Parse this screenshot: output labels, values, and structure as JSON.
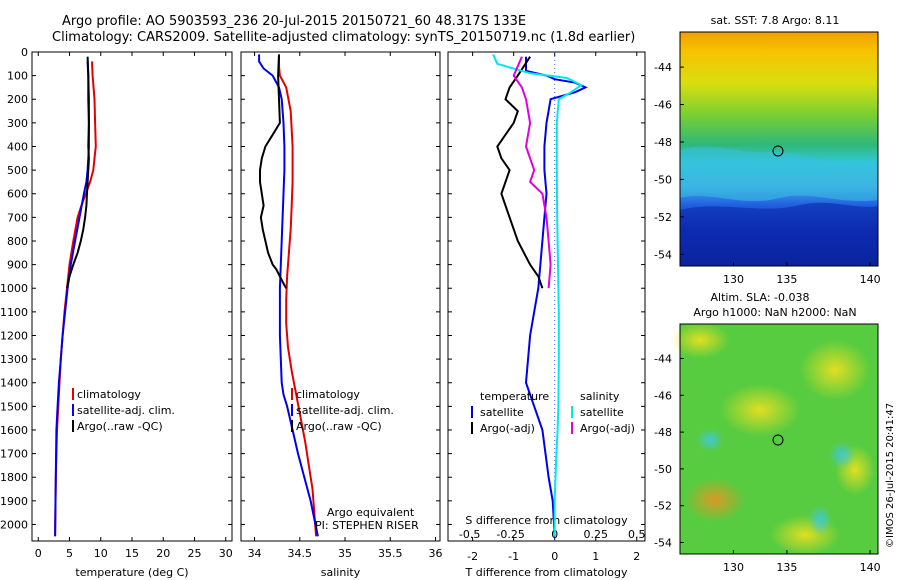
{
  "header": {
    "line1": "Argo profile: AO 5903593_236 20-Jul-2015 20150721_60 48.317S 133E",
    "line2": "Climatology: CARS2009. Satellite-adjusted climatology: synTS_20150719.nc (1.8d earlier)"
  },
  "colors": {
    "climatology": "#e00000",
    "satellite": "#0000ee",
    "argo": "#000000",
    "sat_sal": "#00e8e8",
    "argo_sal": "#e000e0"
  },
  "chart_data": [
    {
      "type": "line",
      "xlabel": "temperature (deg C)",
      "xlim": [
        -1,
        31
      ],
      "xticks": [
        0,
        5,
        10,
        15,
        20,
        25,
        30
      ],
      "ylim": [
        2070,
        0
      ],
      "yticks": [
        0,
        100,
        200,
        300,
        400,
        500,
        600,
        700,
        800,
        900,
        1000,
        1100,
        1200,
        1300,
        1400,
        1500,
        1600,
        1700,
        1800,
        1900,
        2000
      ],
      "legend": [
        "climatology",
        "satellite-adj. clim.",
        "Argo(..raw -QC)"
      ],
      "series": [
        {
          "name": "climatology",
          "x": [
            8.6,
            8.7,
            9.0,
            9.1,
            9.2,
            9.0,
            8.8,
            8.3,
            7.6,
            6.9,
            6.3,
            5.6,
            5.0,
            4.6,
            4.2,
            3.9,
            3.6,
            3.4,
            3.2,
            3.0,
            2.8,
            2.7
          ],
          "y": [
            40,
            100,
            200,
            300,
            400,
            450,
            500,
            550,
            600,
            650,
            700,
            800,
            900,
            1000,
            1100,
            1200,
            1300,
            1400,
            1500,
            1600,
            1800,
            2050
          ]
        },
        {
          "name": "satellite-adj. clim.",
          "x": [
            7.9,
            8.0,
            8.1,
            8.1,
            8.1,
            8.0,
            7.9,
            7.7,
            7.3,
            6.6,
            5.9,
            5.2,
            4.7,
            4.3,
            3.9,
            3.6,
            3.3,
            3.1,
            2.9,
            2.8,
            2.7
          ],
          "y": [
            40,
            100,
            200,
            300,
            400,
            450,
            500,
            550,
            600,
            700,
            800,
            900,
            1000,
            1100,
            1200,
            1300,
            1400,
            1500,
            1600,
            1800,
            2050
          ]
        },
        {
          "name": "Argo(..raw -QC)",
          "x": [
            7.9,
            8.0,
            8.0,
            8.1,
            8.0,
            8.1,
            8.0,
            7.9,
            7.8,
            7.7,
            7.5,
            7.2,
            6.8,
            6.3,
            5.6,
            5.0,
            4.6
          ],
          "y": [
            20,
            100,
            200,
            300,
            400,
            450,
            500,
            550,
            600,
            650,
            700,
            750,
            800,
            850,
            900,
            950,
            1000
          ]
        }
      ]
    },
    {
      "type": "line",
      "xlabel": "salinity",
      "xlim": [
        33.85,
        36.05
      ],
      "xticks": [
        34,
        34.5,
        35,
        35.5,
        36
      ],
      "ylim": [
        2070,
        0
      ],
      "legend": [
        "climatology",
        "satellite-adj. clim.",
        "Argo(..raw -QC)"
      ],
      "annotations": [
        "Argo equivalent",
        "PI: STEPHEN RISER"
      ],
      "series": [
        {
          "name": "climatology",
          "x": [
            34.27,
            34.27,
            34.28,
            34.35,
            34.4,
            34.42,
            34.42,
            34.41,
            34.4,
            34.38,
            34.36,
            34.35,
            34.35,
            34.37,
            34.41,
            34.46,
            34.51,
            34.56,
            34.6,
            34.64,
            34.68
          ],
          "y": [
            10,
            60,
            100,
            150,
            250,
            400,
            550,
            650,
            750,
            850,
            950,
            1050,
            1150,
            1250,
            1350,
            1450,
            1550,
            1650,
            1750,
            1850,
            2050
          ]
        },
        {
          "name": "satellite-adj. clim.",
          "x": [
            34.05,
            34.05,
            34.1,
            34.2,
            34.27,
            34.3,
            34.32,
            34.33,
            34.33,
            34.32,
            34.31,
            34.3,
            34.29,
            34.28,
            34.28,
            34.28,
            34.29,
            34.3,
            34.32,
            34.36,
            34.42,
            34.48,
            34.55,
            34.62,
            34.7
          ],
          "y": [
            10,
            40,
            70,
            100,
            150,
            200,
            300,
            400,
            500,
            600,
            700,
            800,
            900,
            1000,
            1100,
            1200,
            1300,
            1400,
            1450,
            1500,
            1600,
            1700,
            1800,
            1900,
            2050
          ]
        },
        {
          "name": "Argo(..raw -QC)",
          "x": [
            34.27,
            34.26,
            34.27,
            34.28,
            34.2,
            34.12,
            34.08,
            34.06,
            34.06,
            34.08,
            34.1,
            34.07,
            34.09,
            34.12,
            34.15,
            34.2,
            34.24,
            34.28,
            34.32,
            34.35
          ],
          "y": [
            10,
            100,
            200,
            300,
            350,
            400,
            450,
            500,
            550,
            600,
            650,
            700,
            750,
            800,
            850,
            900,
            920,
            950,
            980,
            1000
          ]
        }
      ]
    },
    {
      "type": "line",
      "xlabel": "T difference from climatology",
      "xlim": [
        -2.6,
        2.2
      ],
      "xticks": [
        -2,
        -1,
        0,
        1,
        2
      ],
      "secondary_xlabel": "S difference from climatology",
      "secondary_xticks": [
        -0.5,
        -0.25,
        0,
        0.25,
        0.5
      ],
      "ylim": [
        2070,
        0
      ],
      "legend": [
        "temperature",
        "satellite",
        "Argo(-adj)",
        "salinity",
        "satellite",
        "Argo(-adj)"
      ],
      "series": [
        {
          "name": "temperature satellite",
          "x": [
            -0.7,
            -0.7,
            -0.2,
            0.0,
            0.5,
            0.75,
            0.5,
            -0.1,
            -0.2,
            -0.25,
            -0.25,
            -0.2,
            -0.25,
            -0.3,
            -0.4,
            -0.6,
            -0.7,
            -0.5,
            -0.3,
            -0.15,
            -0.05,
            0.0
          ],
          "y": [
            20,
            80,
            100,
            115,
            130,
            150,
            170,
            200,
            300,
            400,
            500,
            600,
            700,
            800,
            1000,
            1200,
            1400,
            1500,
            1600,
            1800,
            1900,
            2050
          ]
        },
        {
          "name": "temperature Argo(-adj)",
          "x": [
            -0.6,
            -0.9,
            -1.1,
            -1.2,
            -0.9,
            -1.0,
            -1.2,
            -1.4,
            -1.3,
            -1.1,
            -1.3,
            -1.1,
            -0.9,
            -0.6,
            -0.4,
            -0.3
          ],
          "y": [
            20,
            100,
            150,
            200,
            250,
            300,
            350,
            400,
            450,
            500,
            600,
            700,
            800,
            900,
            950,
            1000
          ]
        },
        {
          "name": "salinity satellite",
          "x": [
            -1.5,
            -1.4,
            -0.6,
            0.3,
            0.65,
            0.4,
            0.1,
            0.05,
            0.05,
            0.06,
            0.08,
            0.1,
            0.1,
            0.09,
            0.07,
            0.04,
            0.02,
            0.0,
            0.0
          ],
          "y": [
            10,
            50,
            90,
            110,
            140,
            170,
            200,
            300,
            500,
            700,
            900,
            1100,
            1300,
            1500,
            1600,
            1700,
            1800,
            1900,
            2050
          ]
        },
        {
          "name": "salinity Argo(-adj)",
          "x": [
            -0.8,
            -1.0,
            -0.8,
            -0.7,
            -0.6,
            -0.7,
            -0.5,
            -0.6,
            -0.3,
            -0.2,
            -0.15,
            -0.1,
            -0.15
          ],
          "y": [
            20,
            100,
            150,
            200,
            300,
            400,
            500,
            550,
            600,
            700,
            800,
            900,
            1000
          ]
        }
      ]
    }
  ],
  "maps": [
    {
      "title": "sat. SST: 7.8 Argo: 8.11",
      "xticks": [
        "130",
        "135",
        "140"
      ],
      "yticks": [
        "-44",
        "-46",
        "-48",
        "-50",
        "-52",
        "-54"
      ]
    },
    {
      "title_line1": "Altim. SLA: -0.038",
      "title_line2": "Argo h1000: NaN h2000: NaN",
      "xticks": [
        "130",
        "135",
        "140"
      ],
      "yticks": [
        "-44",
        "-46",
        "-48",
        "-50",
        "-52",
        "-54"
      ]
    }
  ],
  "credit": "©IMOS 26-Jul-2015 20:41:47"
}
